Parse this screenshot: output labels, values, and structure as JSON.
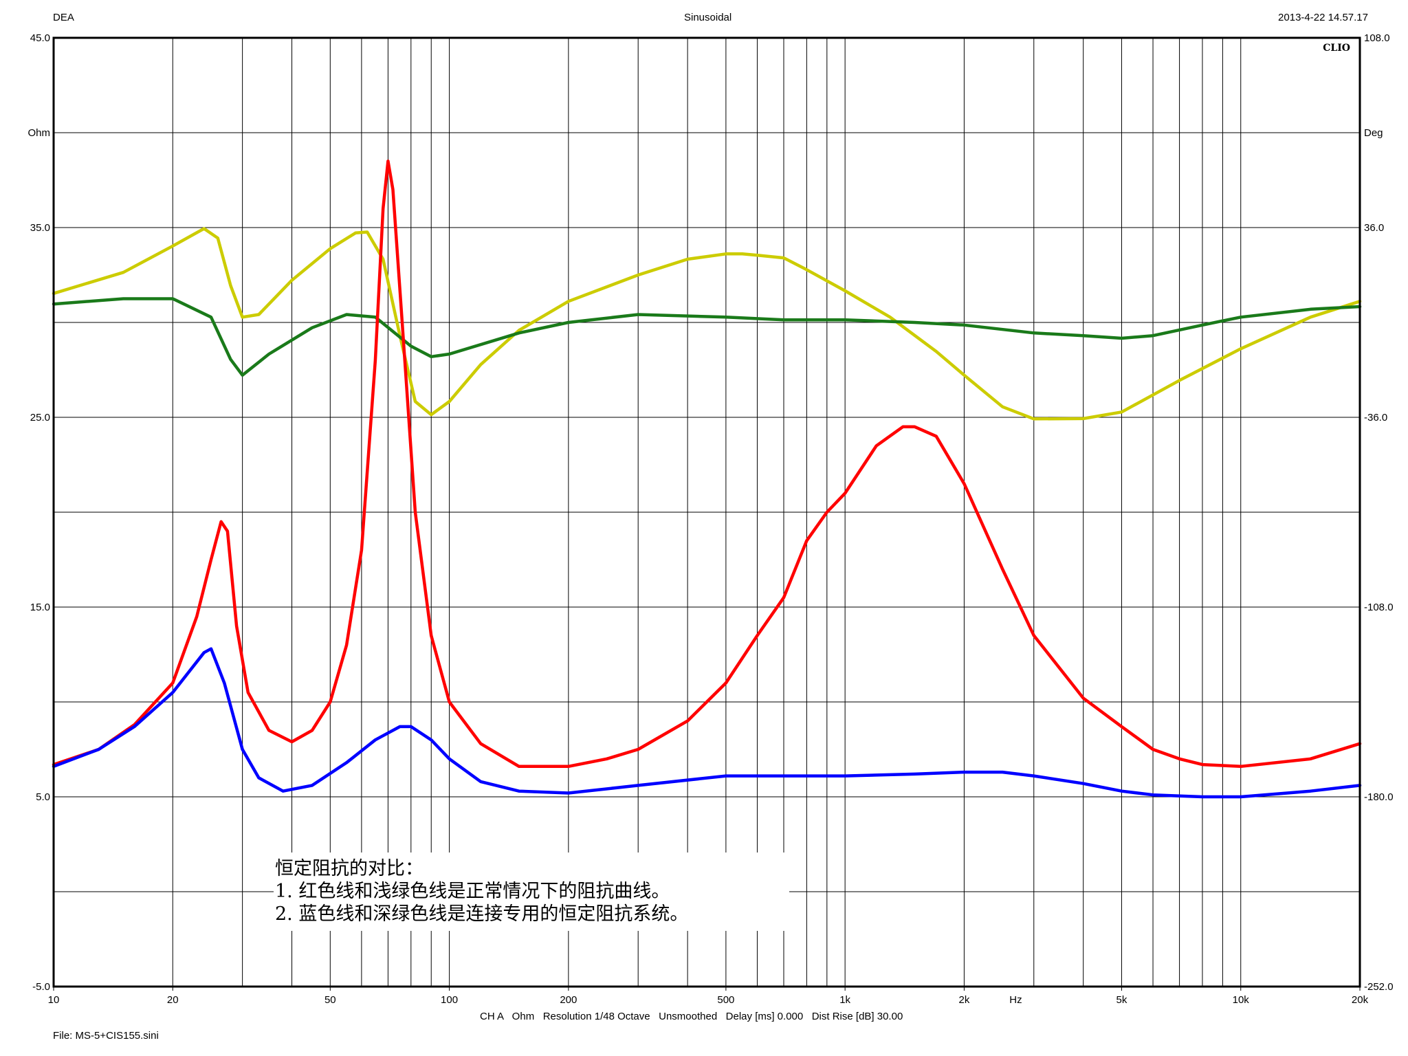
{
  "header": {
    "left": "DEA",
    "center": "Sinusoidal",
    "right": "2013-4-22 14.57.17"
  },
  "brand": "CLIO",
  "footer": {
    "settings": "CH A   Ohm   Resolution 1/48 Octave   Unsmoothed   Delay [ms] 0.000   Dist Rise [dB] 30.00",
    "file": "File: MS-5+CIS155.sini"
  },
  "annotation": {
    "title": "恒定阻抗的对比：",
    "lines": [
      "1. 红色线和浅绿色线是正常情况下的阻抗曲线。",
      "2. 蓝色线和深绿色线是连接专用的恒定阻抗系统。"
    ]
  },
  "chart_data": {
    "type": "line",
    "x_scale": "log",
    "xlim": [
      10,
      20000
    ],
    "ylim_left": [
      -5,
      45
    ],
    "ylim_right": [
      -252,
      108
    ],
    "grid": true,
    "legend": "none",
    "x_ticks": [
      {
        "v": 10,
        "label": "10"
      },
      {
        "v": 20,
        "label": "20"
      },
      {
        "v": 50,
        "label": "50"
      },
      {
        "v": 100,
        "label": "100"
      },
      {
        "v": 200,
        "label": "200"
      },
      {
        "v": 500,
        "label": "500"
      },
      {
        "v": 1000,
        "label": "1k"
      },
      {
        "v": 2000,
        "label": "2k"
      },
      {
        "v": 5000,
        "label": "5k"
      },
      {
        "v": 10000,
        "label": "10k"
      },
      {
        "v": 20000,
        "label": "20k"
      }
    ],
    "x_unit": "Hz",
    "y_left_ticks": [
      "45.0",
      "35.0",
      "25.0",
      "15.0",
      "5.0",
      "-5.0"
    ],
    "y_left_unit": "Ohm",
    "y_right_ticks": [
      "108.0",
      "36.0",
      "-36.0",
      "-108.0",
      "-180.0",
      "-252.0"
    ],
    "y_right_unit": "Deg",
    "series": [
      {
        "color": "#cccc00",
        "axis": "right",
        "points": [
          [
            10,
            11.0
          ],
          [
            15,
            19.0
          ],
          [
            20,
            29.0
          ],
          [
            24,
            35.6
          ],
          [
            26,
            32.0
          ],
          [
            28,
            14.0
          ],
          [
            30,
            2.0
          ],
          [
            33,
            3.0
          ],
          [
            40,
            16.0
          ],
          [
            50,
            28.0
          ],
          [
            58,
            34.0
          ],
          [
            62,
            34.3
          ],
          [
            68,
            24.0
          ],
          [
            75,
            -5.0
          ],
          [
            82,
            -30.0
          ],
          [
            90,
            -35.0
          ],
          [
            100,
            -30.0
          ],
          [
            120,
            -16.0
          ],
          [
            150,
            -3.0
          ],
          [
            200,
            8.0
          ],
          [
            300,
            18.0
          ],
          [
            400,
            24.0
          ],
          [
            500,
            26.0
          ],
          [
            550,
            26.0
          ],
          [
            600,
            25.5
          ],
          [
            700,
            24.5
          ],
          [
            800,
            20.0
          ],
          [
            1000,
            12.0
          ],
          [
            1300,
            2.0
          ],
          [
            1700,
            -11.0
          ],
          [
            2000,
            -20.0
          ],
          [
            2500,
            -32.0
          ],
          [
            3000,
            -36.6
          ],
          [
            4000,
            -36.5
          ],
          [
            5000,
            -34.0
          ],
          [
            7000,
            -22.0
          ],
          [
            10000,
            -10.0
          ],
          [
            15000,
            2.0
          ],
          [
            20000,
            8.0
          ]
        ]
      },
      {
        "color": "#1a7a1a",
        "axis": "right",
        "points": [
          [
            10,
            7.0
          ],
          [
            15,
            9.0
          ],
          [
            20,
            9.0
          ],
          [
            25,
            2.0
          ],
          [
            28,
            -14.0
          ],
          [
            30,
            -20.0
          ],
          [
            35,
            -12.0
          ],
          [
            45,
            -2.0
          ],
          [
            55,
            3.0
          ],
          [
            65,
            2.0
          ],
          [
            80,
            -9.0
          ],
          [
            90,
            -13.0
          ],
          [
            100,
            -12.0
          ],
          [
            150,
            -4.0
          ],
          [
            200,
            0.0
          ],
          [
            300,
            3.0
          ],
          [
            500,
            2.0
          ],
          [
            700,
            1.0
          ],
          [
            1000,
            1.0
          ],
          [
            1500,
            0.0
          ],
          [
            2000,
            -1.0
          ],
          [
            3000,
            -4.0
          ],
          [
            4000,
            -5.0
          ],
          [
            5000,
            -6.0
          ],
          [
            6000,
            -5.0
          ],
          [
            8000,
            -1.0
          ],
          [
            10000,
            2.0
          ],
          [
            15000,
            5.0
          ],
          [
            20000,
            6.0
          ]
        ]
      },
      {
        "color": "#ff0000",
        "axis": "left",
        "points": [
          [
            10,
            6.7
          ],
          [
            13,
            7.5
          ],
          [
            16,
            8.8
          ],
          [
            20,
            11.0
          ],
          [
            23,
            14.5
          ],
          [
            25,
            17.5
          ],
          [
            26.5,
            19.5
          ],
          [
            27.5,
            19.0
          ],
          [
            29,
            14.0
          ],
          [
            31,
            10.5
          ],
          [
            35,
            8.5
          ],
          [
            40,
            7.9
          ],
          [
            45,
            8.5
          ],
          [
            50,
            10.0
          ],
          [
            55,
            13.0
          ],
          [
            60,
            18.0
          ],
          [
            65,
            28.0
          ],
          [
            68,
            36.0
          ],
          [
            70,
            38.5
          ],
          [
            72,
            37.0
          ],
          [
            76,
            30.0
          ],
          [
            82,
            20.0
          ],
          [
            90,
            13.5
          ],
          [
            100,
            10.0
          ],
          [
            120,
            7.8
          ],
          [
            150,
            6.6
          ],
          [
            200,
            6.6
          ],
          [
            250,
            7.0
          ],
          [
            300,
            7.5
          ],
          [
            400,
            9.0
          ],
          [
            500,
            11.0
          ],
          [
            600,
            13.5
          ],
          [
            700,
            15.5
          ],
          [
            800,
            18.5
          ],
          [
            900,
            20.0
          ],
          [
            1000,
            21.0
          ],
          [
            1200,
            23.5
          ],
          [
            1400,
            24.5
          ],
          [
            1500,
            24.5
          ],
          [
            1700,
            24.0
          ],
          [
            2000,
            21.5
          ],
          [
            2500,
            17.0
          ],
          [
            3000,
            13.5
          ],
          [
            4000,
            10.2
          ],
          [
            5000,
            8.7
          ],
          [
            6000,
            7.5
          ],
          [
            7000,
            7.0
          ],
          [
            8000,
            6.7
          ],
          [
            10000,
            6.6
          ],
          [
            15000,
            7.0
          ],
          [
            20000,
            7.8
          ]
        ]
      },
      {
        "color": "#0000ff",
        "axis": "left",
        "points": [
          [
            10,
            6.6
          ],
          [
            13,
            7.5
          ],
          [
            16,
            8.7
          ],
          [
            20,
            10.5
          ],
          [
            24,
            12.6
          ],
          [
            25,
            12.8
          ],
          [
            27,
            11.0
          ],
          [
            30,
            7.5
          ],
          [
            33,
            6.0
          ],
          [
            38,
            5.3
          ],
          [
            45,
            5.6
          ],
          [
            55,
            6.8
          ],
          [
            65,
            8.0
          ],
          [
            75,
            8.7
          ],
          [
            80,
            8.7
          ],
          [
            90,
            8.0
          ],
          [
            100,
            7.0
          ],
          [
            120,
            5.8
          ],
          [
            150,
            5.3
          ],
          [
            200,
            5.2
          ],
          [
            300,
            5.6
          ],
          [
            500,
            6.1
          ],
          [
            700,
            6.1
          ],
          [
            1000,
            6.1
          ],
          [
            1500,
            6.2
          ],
          [
            2000,
            6.3
          ],
          [
            2500,
            6.3
          ],
          [
            3000,
            6.1
          ],
          [
            4000,
            5.7
          ],
          [
            5000,
            5.3
          ],
          [
            6000,
            5.1
          ],
          [
            8000,
            5.0
          ],
          [
            10000,
            5.0
          ],
          [
            15000,
            5.3
          ],
          [
            20000,
            5.6
          ]
        ]
      }
    ]
  }
}
